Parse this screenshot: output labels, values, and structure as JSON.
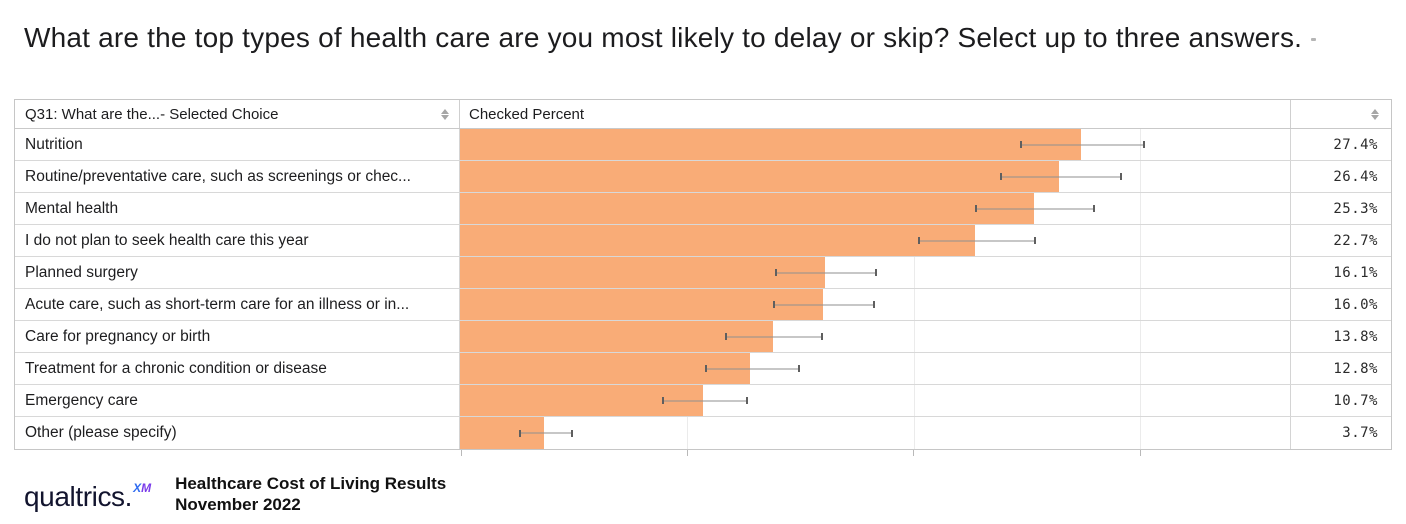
{
  "title": "What are the top types of health care are you most likely to delay or skip? Select up to three answers.",
  "table": {
    "col1_header": "Q31: What are the...- Selected Choice",
    "col2_header": "Checked Percent",
    "col3_header": "",
    "axis": {
      "max": 36.6,
      "ticks": [
        0,
        10,
        20,
        30
      ]
    },
    "rows": [
      {
        "label": "Nutrition",
        "value": 27.4,
        "pct": "27.4%",
        "lo": 24.7,
        "hi": 30.2
      },
      {
        "label": "Routine/preventative care, such as screenings or chec...",
        "value": 26.4,
        "pct": "26.4%",
        "lo": 23.8,
        "hi": 29.2
      },
      {
        "label": "Mental health",
        "value": 25.3,
        "pct": "25.3%",
        "lo": 22.7,
        "hi": 28.0
      },
      {
        "label": "I do not plan to seek health care this year",
        "value": 22.7,
        "pct": "22.7%",
        "lo": 20.2,
        "hi": 25.4
      },
      {
        "label": "Planned surgery",
        "value": 16.1,
        "pct": "16.1%",
        "lo": 13.9,
        "hi": 18.4
      },
      {
        "label": "Acute care, such as short-term care for an illness or in...",
        "value": 16.0,
        "pct": "16.0%",
        "lo": 13.8,
        "hi": 18.3
      },
      {
        "label": "Care for pregnancy or birth",
        "value": 13.8,
        "pct": "13.8%",
        "lo": 11.7,
        "hi": 16.0
      },
      {
        "label": "Treatment for a chronic condition or disease",
        "value": 12.8,
        "pct": "12.8%",
        "lo": 10.8,
        "hi": 15.0
      },
      {
        "label": "Emergency care",
        "value": 10.7,
        "pct": "10.7%",
        "lo": 8.9,
        "hi": 12.7
      },
      {
        "label": "Other (please specify)",
        "value": 3.7,
        "pct": "3.7%",
        "lo": 2.6,
        "hi": 5.0
      }
    ]
  },
  "chart_data": {
    "type": "bar",
    "orientation": "horizontal",
    "title": "What are the top types of health care are you most likely to delay or skip? Select up to three answers.",
    "categories": [
      "Nutrition",
      "Routine/preventative care, such as screenings or chec...",
      "Mental health",
      "I do not plan to seek health care this year",
      "Planned surgery",
      "Acute care, such as short-term care for an illness or in...",
      "Care for pregnancy or birth",
      "Treatment for a chronic condition or disease",
      "Emergency care",
      "Other (please specify)"
    ],
    "values": [
      27.4,
      26.4,
      25.3,
      22.7,
      16.1,
      16.0,
      13.8,
      12.8,
      10.7,
      3.7
    ],
    "error_low": [
      24.7,
      23.8,
      22.7,
      20.2,
      13.9,
      13.8,
      11.7,
      10.8,
      8.9,
      2.6
    ],
    "error_high": [
      30.2,
      29.2,
      28.0,
      25.4,
      18.4,
      18.3,
      16.0,
      15.0,
      12.7,
      5.0
    ],
    "value_labels": [
      "27.4%",
      "26.4%",
      "25.3%",
      "22.7%",
      "16.1%",
      "16.0%",
      "13.8%",
      "12.8%",
      "10.7%",
      "3.7%"
    ],
    "xlabel": "Checked Percent",
    "ylabel": "Q31: What are the...- Selected Choice",
    "xlim": [
      0,
      36.6
    ],
    "xticks": [
      0,
      10,
      20,
      30
    ],
    "legend": false,
    "grid": "faint-vertical",
    "bar_color": "#F9AC77",
    "error_bar_color": "#8f8f8f"
  },
  "footer": {
    "logo_text": "qualtrics",
    "logo_dot": ".",
    "logo_sup_x": "X",
    "logo_sup_m": "M",
    "line1": "Healthcare Cost of Living Results",
    "line2": "November 2022"
  },
  "colors": {
    "bar": "#F9AC77",
    "error_bar": "#8f8f8f",
    "border": "#c6c6c6",
    "row_border": "#d8d8d8",
    "logo_x": "#2e6bf0",
    "logo_m": "#7a3bea"
  }
}
